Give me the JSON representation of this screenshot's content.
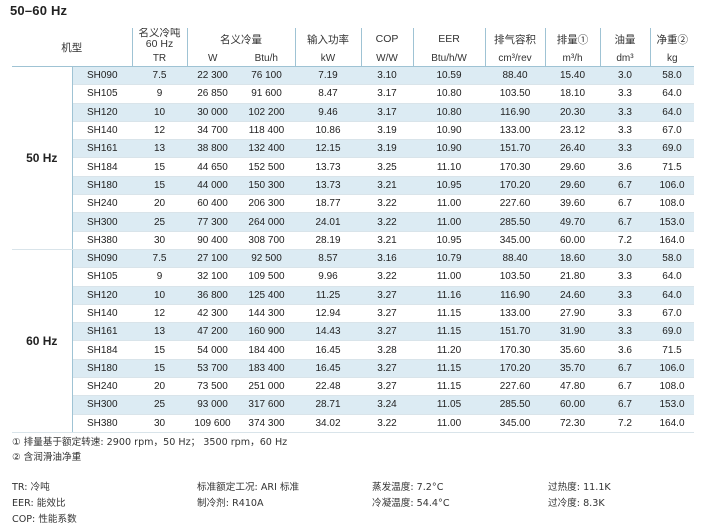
{
  "title": "50–60 Hz",
  "header": {
    "model": "机型",
    "nominal": "名义冷吨",
    "nominal_sub": "60 Hz",
    "capacity": "名义冷量",
    "power": "输入功率",
    "cop": "COP",
    "eer": "EER",
    "displacement": "排气容积",
    "swept": "排量①",
    "oil": "油量",
    "weight": "净重②"
  },
  "units": [
    "TR",
    "W",
    "Btu/h",
    "kW",
    "W/W",
    "Btu/h/W",
    "cm³/rev",
    "m³/h",
    "dm³",
    "kg"
  ],
  "groups": [
    {
      "freq": "50 Hz",
      "rows": [
        [
          "SH090",
          "7.5",
          "22 300",
          "76 100",
          "7.19",
          "3.10",
          "10.59",
          "88.40",
          "15.40",
          "3.0",
          "58.0"
        ],
        [
          "SH105",
          "9",
          "26 850",
          "91 600",
          "8.47",
          "3.17",
          "10.80",
          "103.50",
          "18.10",
          "3.3",
          "64.0"
        ],
        [
          "SH120",
          "10",
          "30 000",
          "102 200",
          "9.46",
          "3.17",
          "10.80",
          "116.90",
          "20.30",
          "3.3",
          "64.0"
        ],
        [
          "SH140",
          "12",
          "34 700",
          "118 400",
          "10.86",
          "3.19",
          "10.90",
          "133.00",
          "23.12",
          "3.3",
          "67.0"
        ],
        [
          "SH161",
          "13",
          "38 800",
          "132 400",
          "12.15",
          "3.19",
          "10.90",
          "151.70",
          "26.40",
          "3.3",
          "69.0"
        ],
        [
          "SH184",
          "15",
          "44 650",
          "152 500",
          "13.73",
          "3.25",
          "11.10",
          "170.30",
          "29.60",
          "3.6",
          "71.5"
        ],
        [
          "SH180",
          "15",
          "44 000",
          "150 300",
          "13.73",
          "3.21",
          "10.95",
          "170.20",
          "29.60",
          "6.7",
          "106.0"
        ],
        [
          "SH240",
          "20",
          "60 400",
          "206 300",
          "18.77",
          "3.22",
          "11.00",
          "227.60",
          "39.60",
          "6.7",
          "108.0"
        ],
        [
          "SH300",
          "25",
          "77 300",
          "264 000",
          "24.01",
          "3.22",
          "11.00",
          "285.50",
          "49.70",
          "6.7",
          "153.0"
        ],
        [
          "SH380",
          "30",
          "90 400",
          "308 700",
          "28.19",
          "3.21",
          "10.95",
          "345.00",
          "60.00",
          "7.2",
          "164.0"
        ]
      ]
    },
    {
      "freq": "60 Hz",
      "rows": [
        [
          "SH090",
          "7.5",
          "27 100",
          "92 500",
          "8.57",
          "3.16",
          "10.79",
          "88.40",
          "18.60",
          "3.0",
          "58.0"
        ],
        [
          "SH105",
          "9",
          "32 100",
          "109 500",
          "9.96",
          "3.22",
          "11.00",
          "103.50",
          "21.80",
          "3.3",
          "64.0"
        ],
        [
          "SH120",
          "10",
          "36 800",
          "125 400",
          "11.25",
          "3.27",
          "11.16",
          "116.90",
          "24.60",
          "3.3",
          "64.0"
        ],
        [
          "SH140",
          "12",
          "42 300",
          "144 300",
          "12.94",
          "3.27",
          "11.15",
          "133.00",
          "27.90",
          "3.3",
          "67.0"
        ],
        [
          "SH161",
          "13",
          "47 200",
          "160 900",
          "14.43",
          "3.27",
          "11.15",
          "151.70",
          "31.90",
          "3.3",
          "69.0"
        ],
        [
          "SH184",
          "15",
          "54 000",
          "184 400",
          "16.45",
          "3.28",
          "11.20",
          "170.30",
          "35.60",
          "3.6",
          "71.5"
        ],
        [
          "SH180",
          "15",
          "53 700",
          "183 400",
          "16.45",
          "3.27",
          "11.15",
          "170.20",
          "35.70",
          "6.7",
          "106.0"
        ],
        [
          "SH240",
          "20",
          "73 500",
          "251 000",
          "22.48",
          "3.27",
          "11.15",
          "227.60",
          "47.80",
          "6.7",
          "108.0"
        ],
        [
          "SH300",
          "25",
          "93 000",
          "317 600",
          "28.71",
          "3.24",
          "11.05",
          "285.50",
          "60.00",
          "6.7",
          "153.0"
        ],
        [
          "SH380",
          "30",
          "109 600",
          "374 300",
          "34.02",
          "3.22",
          "11.00",
          "345.00",
          "72.30",
          "7.2",
          "164.0"
        ]
      ]
    }
  ],
  "notes": {
    "note1": "① 排量基于额定转速: 2900 rpm，50 Hz；  3500 rpm，60 Hz",
    "note2": "② 含润滑油净重"
  },
  "legend": {
    "tr": "TR: 冷吨",
    "eer": "EER: 能效比",
    "cop": "COP: 性能系数",
    "std": "标准额定工况: ARI 标准",
    "refrigerant": "制冷剂: R410A",
    "evap": "蒸发温度: 7.2°C",
    "cond": "冷凝温度: 54.4°C",
    "superheat": "过热度: 11.1K",
    "subcool": "过冷度: 8.3K"
  },
  "colors": {
    "row_shade": "#dcebf3",
    "rule": "#9fc3d4"
  }
}
